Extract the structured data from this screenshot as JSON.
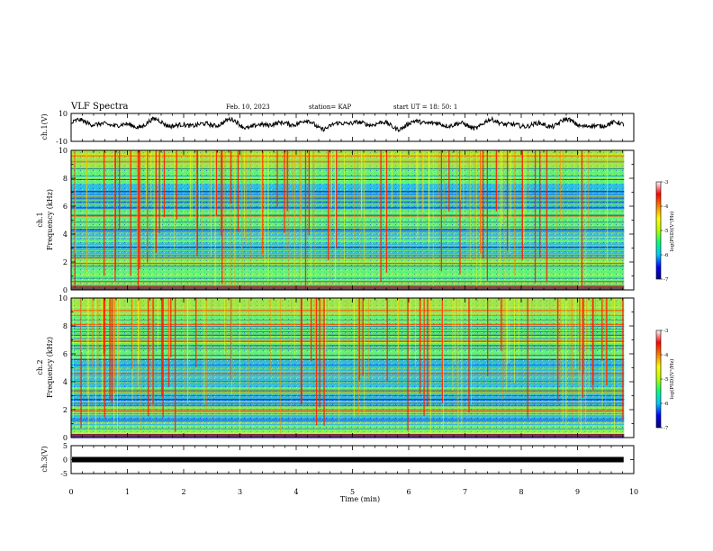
{
  "header": {
    "title": "VLF Spectra",
    "date": "Feb. 10, 2023",
    "station": "station= KAP",
    "start_ut": "start  UT  =   18: 50: 1"
  },
  "colors": {
    "spectrogram_scale": [
      "#000080",
      "#0000ff",
      "#00c8ff",
      "#00ff80",
      "#b4ff00",
      "#ffff00",
      "#ff8000",
      "#ff0000",
      "#ffffff"
    ],
    "ch3_trace": "#000000",
    "ch1_trace": "#000000"
  },
  "chart_data": [
    {
      "type": "line",
      "name": "ch1-waveform",
      "ylabel": "ch.1(V)",
      "ylim": [
        -10,
        10
      ],
      "y_ticks": [
        "10",
        "-10"
      ],
      "xlim": [
        0,
        10
      ],
      "x_coverage": [
        0,
        9.82
      ],
      "approx_level": [
        1,
        4
      ]
    },
    {
      "type": "heatmap",
      "name": "ch1-spectrogram",
      "ylabel_lines": [
        "ch.1",
        "Frequency (kHz)"
      ],
      "ylim": [
        0,
        10
      ],
      "y_ticks": [
        "0",
        "2",
        "4",
        "6",
        "8",
        "10"
      ],
      "xlim": [
        0,
        10
      ],
      "colorbar_label": "log(PSD)(V²/Hz)",
      "colorbar_range": [
        -7,
        -3
      ],
      "colorbar_ticks": [
        "-3",
        "-4",
        "-5",
        "-6",
        "-7"
      ],
      "low_bands_khz": [
        [
          5.8,
          7.6
        ],
        [
          3.6,
          4.4
        ],
        [
          2.4,
          3.4
        ]
      ],
      "bright_lines_khz": [
        0.3,
        0.6,
        1.9,
        2.3,
        5.3,
        9.2,
        9.6
      ]
    },
    {
      "type": "heatmap",
      "name": "ch2-spectrogram",
      "ylabel_lines": [
        "ch.2",
        "Frequency (kHz)"
      ],
      "ylim": [
        0,
        10
      ],
      "y_ticks": [
        "0",
        "2",
        "4",
        "6",
        "8",
        "10"
      ],
      "xlim": [
        0,
        10
      ],
      "colorbar_label": "log(PSD)(V²/Hz)",
      "colorbar_range": [
        -7,
        -3
      ],
      "colorbar_ticks": [
        "-3",
        "-4",
        "-5",
        "-6",
        "-7"
      ],
      "low_bands_khz": [
        [
          3.6,
          5.6
        ],
        [
          2.2,
          3.2
        ],
        [
          0.9,
          1.8
        ]
      ],
      "bright_lines_khz": [
        0.2,
        1.9,
        3.3,
        4.6,
        6.9,
        8.1,
        9.1
      ]
    },
    {
      "type": "line",
      "name": "ch3-trace",
      "ylabel": "ch.3(V)",
      "ylim": [
        -5,
        5
      ],
      "y_ticks": [
        "5",
        "0",
        "-5"
      ],
      "xlim": [
        0,
        10
      ],
      "x_coverage": [
        0,
        9.82
      ],
      "value": 0,
      "x_ticks": [
        "0",
        "1",
        "2",
        "3",
        "4",
        "5",
        "6",
        "7",
        "8",
        "9",
        "10"
      ],
      "xlabel": "Time (min)"
    }
  ]
}
